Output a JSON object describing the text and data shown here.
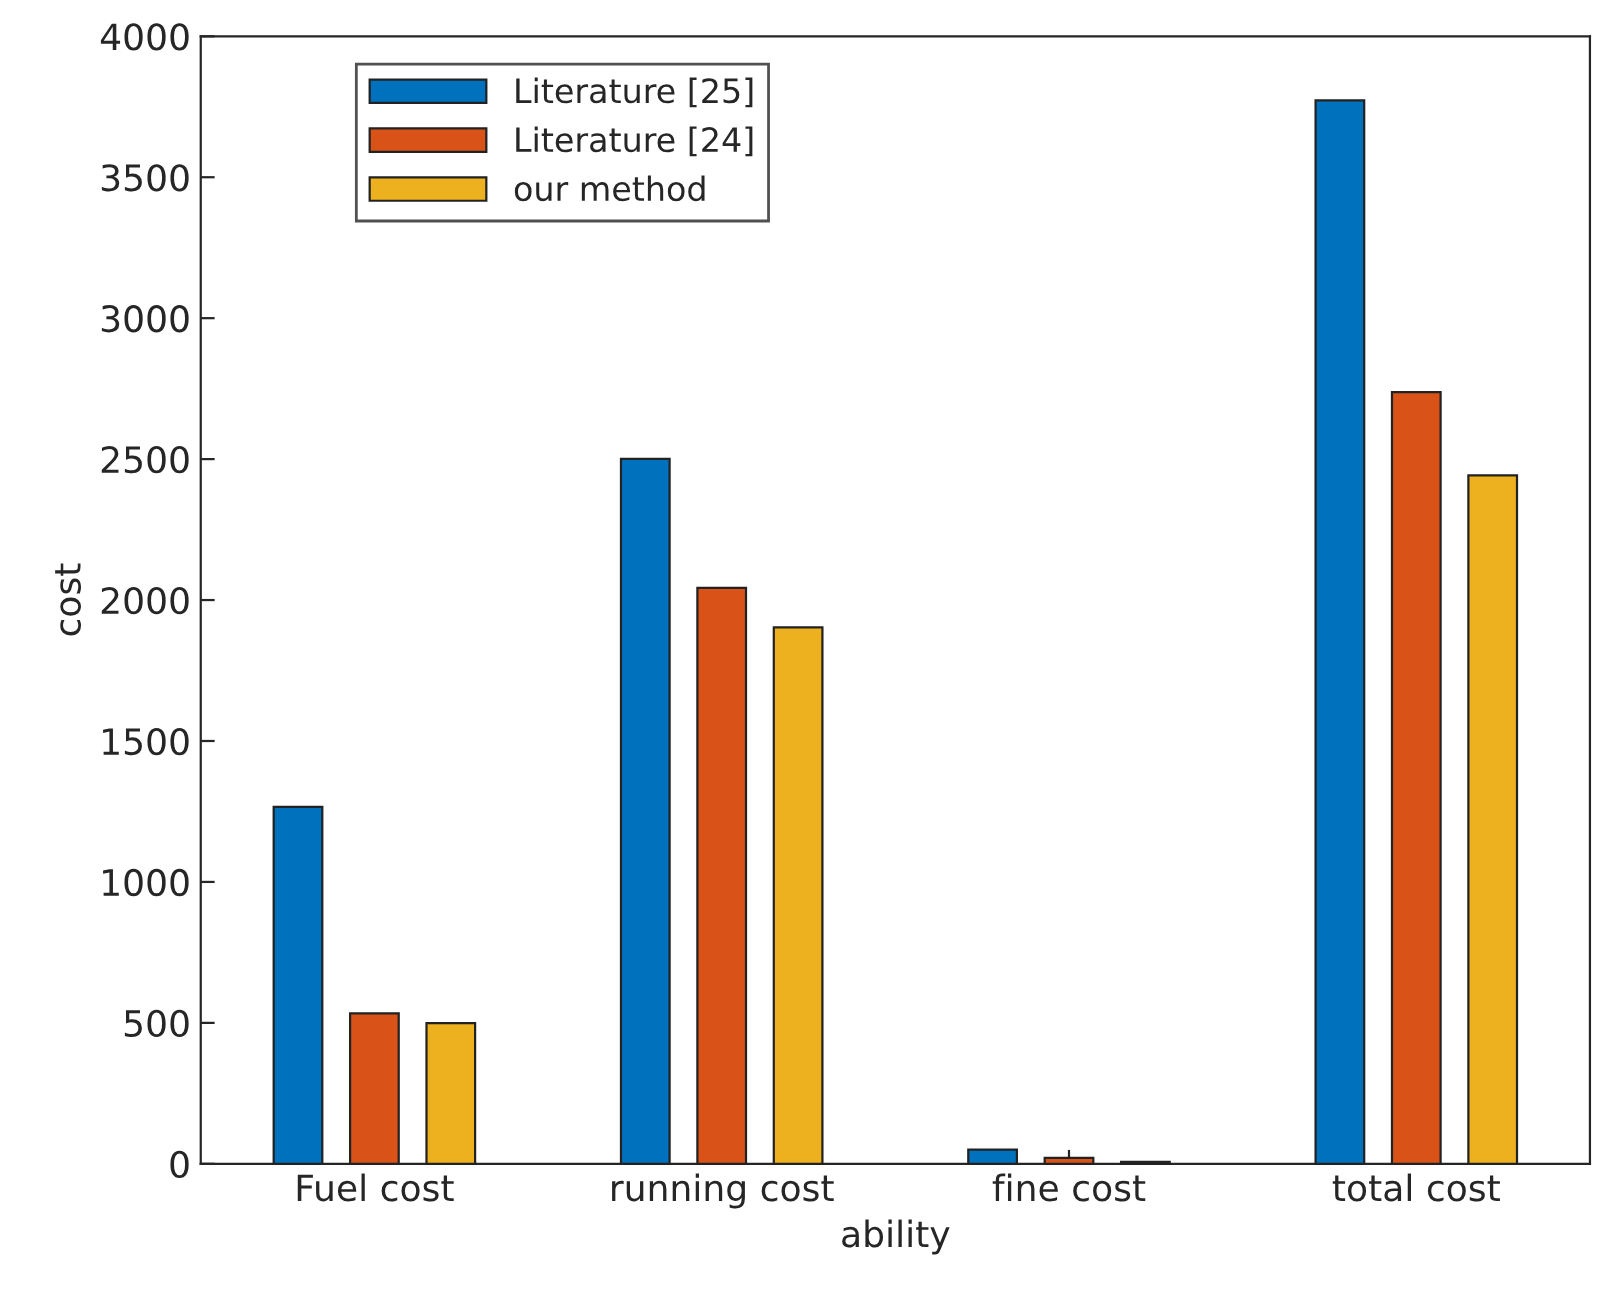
{
  "chart_data": {
    "type": "bar",
    "xlabel": "ability",
    "ylabel": "cost",
    "categories": [
      "Fuel cost",
      "running cost",
      "fine cost",
      "total cost"
    ],
    "series": [
      {
        "name": "Literature [25]",
        "color": "#0072bd",
        "values": [
          1266,
          2501,
          50,
          3773
        ]
      },
      {
        "name": "Literature [24]",
        "color": "#d95319",
        "values": [
          534,
          2043,
          21,
          2738
        ]
      },
      {
        "name": "our method",
        "color": "#edb120",
        "values": [
          499,
          1903,
          7,
          2442
        ]
      }
    ],
    "ylim": [
      0,
      4000
    ],
    "yticks": [
      0,
      500,
      1000,
      1500,
      2000,
      2500,
      3000,
      3500,
      4000
    ],
    "grid": false,
    "legend": "top left"
  }
}
